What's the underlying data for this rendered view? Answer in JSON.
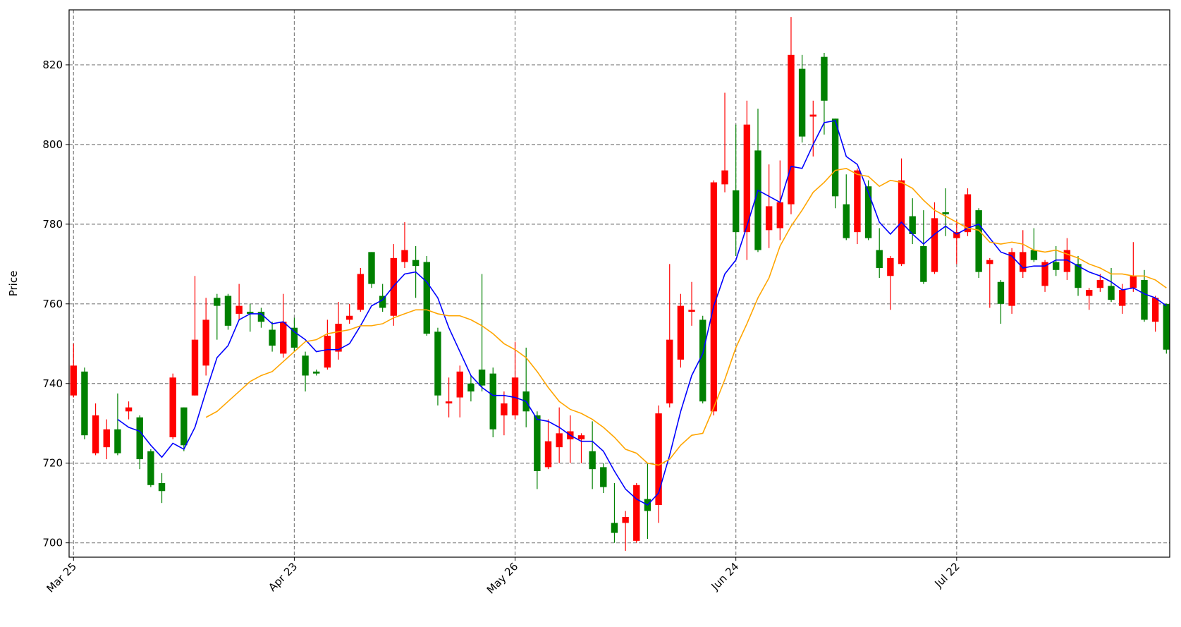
{
  "chart_data": {
    "type": "candlestick",
    "ylabel": "Price",
    "categories": [
      "Mar 25",
      null,
      null,
      null,
      null,
      null,
      null,
      null,
      null,
      null,
      null,
      null,
      null,
      null,
      null,
      null,
      null,
      null,
      null,
      null,
      "Apr 23",
      null,
      null,
      null,
      null,
      null,
      null,
      null,
      null,
      null,
      null,
      null,
      null,
      null,
      null,
      null,
      null,
      null,
      null,
      null,
      "May 26",
      null,
      null,
      null,
      null,
      null,
      null,
      null,
      null,
      null,
      null,
      null,
      null,
      null,
      null,
      null,
      null,
      null,
      null,
      null,
      "Jun 24",
      null,
      null,
      null,
      null,
      null,
      null,
      null,
      null,
      null,
      null,
      null,
      null,
      null,
      null,
      null,
      null,
      null,
      null,
      null,
      "Jul 22",
      null,
      null,
      null,
      null,
      null,
      null,
      null,
      null,
      null,
      null,
      null,
      null,
      null,
      null,
      null,
      null,
      null,
      null,
      null
    ],
    "open": [
      737,
      743,
      722.5,
      724,
      728.5,
      733,
      731.5,
      723,
      715,
      726.5,
      734,
      737,
      744.5,
      761.5,
      762,
      757.5,
      758,
      758,
      753.5,
      747.5,
      754,
      747,
      743,
      744,
      748,
      756,
      758.5,
      773,
      762,
      757,
      770.5,
      771,
      770.5,
      753,
      735,
      736.5,
      740,
      743.5,
      742.5,
      732,
      732,
      738,
      732,
      719,
      724,
      726,
      726,
      723,
      719,
      705,
      705,
      700.5,
      711,
      709.5,
      735,
      746,
      758,
      756,
      733,
      790,
      788.5,
      778,
      798.5,
      778.5,
      779,
      785,
      819,
      807,
      822,
      806.5,
      785,
      778,
      789.5,
      773.5,
      767,
      770,
      782,
      774.5,
      768,
      783,
      776.5,
      778,
      783.5,
      770,
      765.5,
      759.5,
      768,
      773.5,
      764.5,
      770.5,
      768,
      770,
      762,
      764,
      764.5,
      759.5,
      764,
      766,
      755.5,
      760
    ],
    "high": [
      750,
      744,
      735,
      731,
      737.5,
      735.5,
      732,
      723.5,
      717.5,
      742.5,
      734,
      767,
      761.5,
      762.5,
      762.5,
      765,
      760,
      759,
      755.5,
      762.5,
      756.5,
      748,
      743.5,
      756,
      760.5,
      760,
      769,
      773,
      765,
      775,
      780.5,
      774.5,
      772,
      754,
      741.5,
      744.5,
      742,
      767.5,
      744,
      738,
      750.5,
      749,
      733,
      731,
      734,
      732,
      727.5,
      730.5,
      720,
      715,
      708,
      715,
      720,
      734.5,
      770,
      762.5,
      765.5,
      757,
      791,
      813,
      805,
      811,
      809,
      795,
      796,
      832,
      822.5,
      811,
      823,
      806.5,
      792.5,
      794,
      791,
      779,
      772,
      796.5,
      786.5,
      783.5,
      785.5,
      789,
      781,
      789,
      784,
      771.5,
      766,
      774,
      778.5,
      779,
      771,
      774.5,
      776.5,
      772,
      764,
      767.5,
      769,
      765,
      775.5,
      768.5,
      762,
      760
    ],
    "low": [
      736.5,
      726,
      722,
      721,
      722,
      731,
      718.5,
      714,
      710,
      726,
      723,
      737,
      742,
      751,
      753.5,
      756,
      753,
      754,
      748,
      746.5,
      748,
      738,
      742,
      743.5,
      746,
      755,
      758,
      764,
      758,
      754.5,
      769,
      761.5,
      752,
      734.5,
      731.5,
      731.5,
      735.5,
      738,
      726.5,
      727,
      731,
      729,
      713.5,
      718.5,
      720,
      720,
      720,
      713.5,
      712.5,
      700,
      698,
      700,
      701,
      705,
      734,
      744,
      754.5,
      735,
      732,
      788,
      772,
      771,
      773,
      774,
      776,
      782.5,
      800.5,
      797,
      802.5,
      784,
      776,
      775,
      776,
      766.5,
      758.5,
      769.5,
      775,
      765,
      767.5,
      777,
      770,
      777,
      766.5,
      759,
      755,
      757.5,
      766.5,
      770.5,
      763,
      767,
      766,
      762,
      758.5,
      763,
      760.5,
      757.5,
      763,
      755.5,
      753,
      747.5
    ],
    "close": [
      744.5,
      727,
      732,
      728.5,
      722.5,
      734,
      721,
      714.5,
      713,
      741.5,
      724.5,
      751,
      756,
      759.5,
      754.5,
      759.5,
      757.5,
      755.5,
      749.5,
      755.5,
      749,
      742,
      742.5,
      752,
      755,
      757,
      767.5,
      765,
      759,
      771.5,
      773.5,
      769.5,
      752.5,
      737,
      735.5,
      743,
      738,
      739.5,
      728.5,
      735,
      741.5,
      733,
      718,
      725.5,
      727.5,
      728,
      727,
      718.5,
      714,
      702.5,
      706.5,
      714.5,
      708,
      732.5,
      751,
      759.5,
      758.5,
      735.5,
      790.5,
      793.5,
      778,
      805,
      773.5,
      784.5,
      785.5,
      822.5,
      802,
      807.5,
      811,
      787,
      776.5,
      793.5,
      776.5,
      769,
      771.5,
      791,
      777.5,
      765.5,
      781.5,
      782.5,
      778,
      787.5,
      768,
      771,
      760,
      773,
      773,
      771,
      770.5,
      768.5,
      773.5,
      764,
      763.5,
      766,
      761,
      763.5,
      767,
      756,
      761.5,
      748.5
    ],
    "up_color": "#ff0000",
    "down_color": "#008000",
    "lines": [
      {
        "color": "#0000ff",
        "values": [
          null,
          null,
          null,
          null,
          731,
          729,
          728,
          724.5,
          721.5,
          725,
          723.5,
          729,
          738,
          746.5,
          749.5,
          756,
          757.5,
          757.5,
          755,
          755.5,
          753,
          751,
          748,
          748.5,
          748.5,
          750,
          754.5,
          759.5,
          761,
          764.5,
          767.5,
          768,
          765.5,
          761.5,
          754,
          748,
          742,
          739,
          737,
          737,
          736.5,
          735.5,
          731,
          730.5,
          729,
          727,
          725.5,
          725.5,
          723,
          718,
          713.5,
          711,
          709.5,
          712.5,
          722,
          733,
          742,
          747.5,
          759.5,
          767.5,
          771,
          779.5,
          788.5,
          787,
          785.5,
          794.5,
          794,
          800,
          805.5,
          806,
          797,
          795,
          788,
          780.5,
          777.5,
          780.5,
          777.5,
          775,
          777.5,
          779.5,
          777.5,
          779,
          780,
          776.5,
          773,
          772,
          769,
          769.5,
          769.5,
          771,
          771,
          769.5,
          768,
          767,
          765.5,
          763.5,
          764,
          762.5,
          761.5,
          759.5
        ]
      },
      {
        "color": "#ffa500",
        "values": [
          null,
          null,
          null,
          null,
          null,
          null,
          null,
          null,
          null,
          null,
          null,
          null,
          731.5,
          733,
          735.5,
          738,
          740.5,
          742,
          743,
          745.5,
          748,
          750.5,
          751,
          752.5,
          753,
          753.5,
          754.5,
          754.5,
          755,
          756.5,
          757.5,
          758.5,
          758.5,
          757.5,
          757,
          757,
          756,
          754.5,
          752.5,
          750,
          748.5,
          746.5,
          743,
          739,
          735.5,
          733.5,
          732.5,
          731,
          729,
          726.5,
          723.5,
          722.5,
          720,
          719.5,
          721,
          724.5,
          727,
          727.5,
          734,
          741,
          749,
          755,
          761.5,
          766.5,
          774.5,
          779.5,
          783.5,
          788,
          790.5,
          793.5,
          794,
          792.5,
          792,
          789.5,
          791,
          790.5,
          789,
          786,
          783.5,
          782,
          780.5,
          779,
          778.5,
          775.5,
          775,
          775.5,
          775,
          773.5,
          773,
          773.5,
          772.5,
          771.5,
          770,
          769,
          767.5,
          767.5,
          767,
          767,
          766,
          764
        ]
      }
    ],
    "xlim": [
      -0.4,
      99.3
    ],
    "ylim": [
      696.4,
      833.8
    ],
    "yticks": [
      700,
      720,
      740,
      760,
      780,
      800,
      820
    ],
    "grid": true
  }
}
